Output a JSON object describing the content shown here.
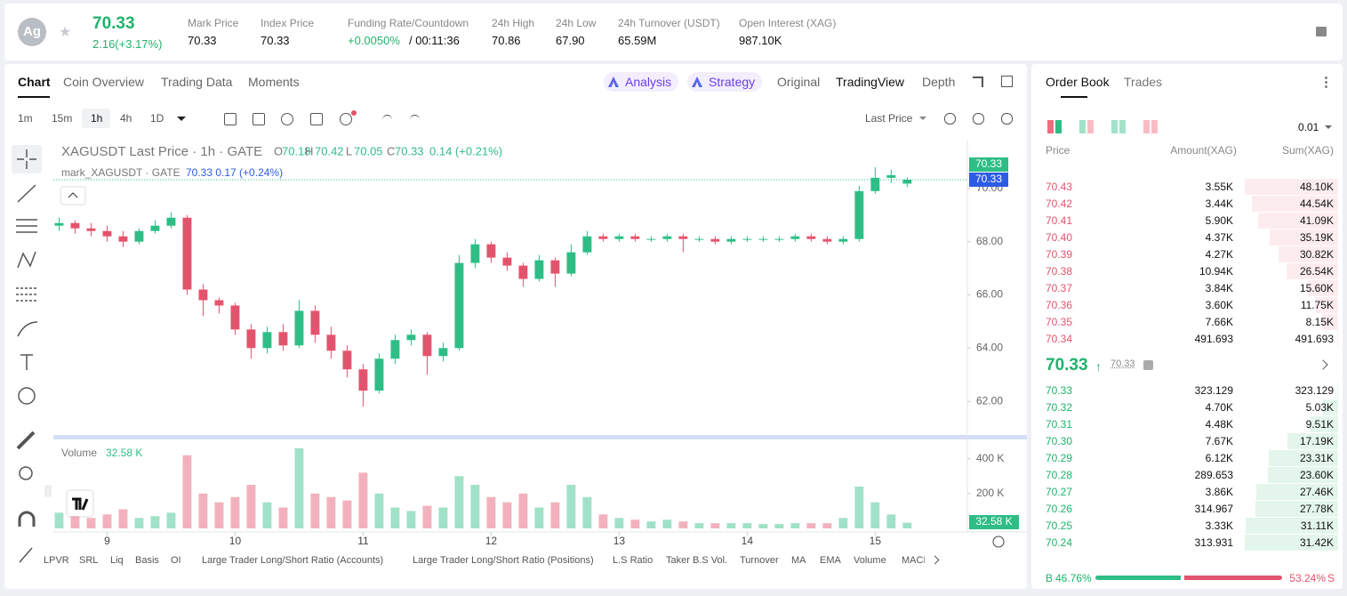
{
  "ticker": {
    "symbol_icon": "Ag",
    "last": "70.33",
    "change": "2.16(+3.17%)",
    "stats": [
      {
        "label": "Mark Price",
        "value": "70.33"
      },
      {
        "label": "Index Price",
        "value": "70.33"
      },
      {
        "label": "Funding Rate/Countdown",
        "value": "+0.0050%",
        "extra": "/ 00:11:36"
      },
      {
        "label": "24h High",
        "value": "70.86"
      },
      {
        "label": "24h Low",
        "value": "67.90"
      },
      {
        "label": "24h Turnover (USDT)",
        "value": "65.59M"
      },
      {
        "label": "Open Interest (XAG)",
        "value": "987.10K"
      }
    ]
  },
  "tabs": {
    "left": [
      "Chart",
      "Coin Overview",
      "Trading Data",
      "Moments"
    ],
    "ai": [
      "Analysis",
      "Strategy"
    ],
    "right": [
      "Original",
      "TradingView",
      "Depth"
    ]
  },
  "toolbar": {
    "intervals": [
      "1m",
      "15m",
      "1h",
      "4h",
      "1D"
    ],
    "price_type": "Last Price"
  },
  "indicators": [
    "LPVR",
    "SRL",
    "Liq",
    "Basis",
    "OI",
    "Large Trader Long/Short Ratio (Accounts)",
    "Large Trader Long/Short Ratio (Positions)",
    "L.S Ratio",
    "Taker B.S Vol.",
    "Turnover",
    "MA",
    "EMA",
    "Volume",
    "MACD"
  ],
  "chart_data": {
    "type": "candlestick",
    "legend": {
      "title": "XAGUSDT Last Price · 1h · GATE",
      "ohlc": [
        {
          "k": "O",
          "v": "70.18"
        },
        {
          "k": "H",
          "v": "70.42"
        },
        {
          "k": "L",
          "v": "70.05"
        },
        {
          "k": "C",
          "v": "70.33"
        }
      ],
      "change": "0.14 (+0.21%)",
      "mark_name": "mark_XAGUSDT · GATE",
      "mark_value": "70.33 0.17 (+0.24%)",
      "volume_name": "Volume",
      "volume_value": "32.58 K"
    },
    "x": [
      8.625,
      8.75,
      8.875,
      9,
      9.125,
      9.25,
      9.375,
      9.5,
      9.625,
      9.75,
      9.875,
      10,
      10.125,
      10.25,
      10.375,
      10.5,
      10.625,
      10.75,
      10.875,
      11,
      11.125,
      11.25,
      11.375,
      11.5,
      11.625,
      11.75,
      11.875,
      12,
      12.125,
      12.25,
      12.375,
      12.5,
      12.625,
      12.75,
      12.875,
      13,
      13.125,
      13.25,
      13.375,
      13.5,
      13.625,
      13.75,
      13.875,
      14,
      14.125,
      14.25,
      14.375,
      14.5,
      14.625,
      14.75,
      14.875,
      15,
      15.125,
      15.25
    ],
    "open": [
      68.6,
      68.7,
      68.5,
      68.4,
      68.2,
      68.0,
      68.4,
      68.6,
      68.9,
      66.2,
      65.8,
      65.6,
      64.7,
      64.0,
      64.6,
      64.1,
      65.4,
      64.5,
      63.9,
      63.2,
      62.4,
      63.6,
      64.3,
      64.5,
      63.7,
      64.0,
      67.2,
      67.9,
      67.4,
      67.1,
      66.6,
      67.3,
      66.8,
      67.6,
      68.2,
      68.1,
      68.2,
      68.1,
      68.1,
      68.2,
      68.1,
      68.1,
      68.0,
      68.1,
      68.1,
      68.1,
      68.1,
      68.2,
      68.1,
      68.0,
      68.1,
      69.9,
      70.4,
      70.18
    ],
    "high": [
      68.9,
      68.8,
      68.7,
      68.6,
      68.4,
      68.5,
      68.8,
      69.1,
      69.0,
      66.4,
      65.9,
      65.7,
      64.9,
      64.8,
      64.9,
      65.8,
      65.6,
      64.8,
      64.1,
      63.4,
      63.8,
      64.5,
      64.7,
      64.6,
      64.2,
      67.5,
      68.1,
      68.0,
      67.6,
      67.2,
      67.5,
      67.4,
      67.9,
      68.4,
      68.3,
      68.3,
      68.3,
      68.2,
      68.3,
      68.3,
      68.2,
      68.2,
      68.2,
      68.2,
      68.2,
      68.2,
      68.3,
      68.3,
      68.2,
      68.2,
      70.1,
      70.8,
      70.7,
      70.42
    ],
    "low": [
      68.4,
      68.3,
      68.2,
      68.0,
      67.8,
      67.9,
      68.3,
      68.5,
      66.0,
      65.2,
      65.3,
      64.5,
      63.6,
      63.8,
      63.9,
      64.0,
      64.2,
      63.6,
      62.9,
      61.8,
      62.3,
      63.4,
      64.1,
      63.0,
      63.5,
      63.9,
      67.0,
      67.2,
      66.9,
      66.3,
      66.5,
      66.3,
      66.7,
      67.5,
      68.0,
      68.0,
      68.0,
      68.0,
      68.0,
      67.6,
      68.0,
      67.9,
      67.9,
      68.0,
      68.0,
      68.0,
      68.0,
      68.0,
      67.9,
      67.9,
      68.0,
      69.8,
      70.2,
      70.05
    ],
    "close": [
      68.7,
      68.5,
      68.4,
      68.2,
      68.0,
      68.4,
      68.6,
      68.9,
      66.2,
      65.8,
      65.6,
      64.7,
      64.0,
      64.6,
      64.1,
      65.4,
      64.5,
      63.9,
      63.2,
      62.4,
      63.6,
      64.3,
      64.5,
      63.7,
      64.0,
      67.2,
      67.9,
      67.4,
      67.1,
      66.6,
      67.3,
      66.8,
      67.6,
      68.2,
      68.1,
      68.2,
      68.1,
      68.1,
      68.2,
      68.1,
      68.1,
      68.0,
      68.1,
      68.1,
      68.1,
      68.1,
      68.2,
      68.1,
      68.0,
      68.1,
      69.9,
      70.4,
      70.5,
      70.33
    ],
    "volume": [
      90000,
      70000,
      60000,
      80000,
      110000,
      60000,
      70000,
      90000,
      420000,
      200000,
      150000,
      180000,
      250000,
      150000,
      120000,
      460000,
      200000,
      180000,
      160000,
      320000,
      200000,
      120000,
      100000,
      130000,
      120000,
      300000,
      250000,
      180000,
      150000,
      200000,
      120000,
      150000,
      250000,
      180000,
      80000,
      60000,
      50000,
      40000,
      50000,
      40000,
      30000,
      30000,
      30000,
      30000,
      25000,
      25000,
      30000,
      30000,
      30000,
      60000,
      240000,
      150000,
      80000,
      32580
    ],
    "up_color": "#2ebd85",
    "down_color": "#e2546d",
    "xlim": [
      8.58,
      15.72
    ],
    "xticks": [
      9,
      10,
      11,
      12,
      13,
      14,
      15
    ],
    "ylim": [
      60.7,
      71.8
    ],
    "yticks": [
      {
        "value": 62,
        "label": "62.00"
      },
      {
        "value": 64,
        "label": "64.00"
      },
      {
        "value": 66,
        "label": "66.00"
      },
      {
        "value": 68,
        "label": "68.00"
      },
      {
        "value": 70,
        "label": "70.00"
      }
    ],
    "vol_ylim": [
      0,
      480000
    ],
    "vol_yticks": [
      {
        "value": 200000,
        "label": "200 K"
      },
      {
        "value": 400000,
        "label": "400 K"
      }
    ],
    "last_price": {
      "value": 70.33,
      "label": "70.33"
    },
    "mark_price": {
      "value": 70.33,
      "label": "70.33"
    },
    "volume_tag": "32.58 K"
  },
  "order_book": {
    "tabs": [
      "Order Book",
      "Trades"
    ],
    "precision": "0.01",
    "headers": [
      "Price",
      "Amount(XAG)",
      "Sum(XAG)"
    ],
    "asks": [
      [
        "70.43",
        "3.55K",
        "48.10K"
      ],
      [
        "70.42",
        "3.44K",
        "44.54K"
      ],
      [
        "70.41",
        "5.90K",
        "41.09K"
      ],
      [
        "70.40",
        "4.37K",
        "35.19K"
      ],
      [
        "70.39",
        "4.27K",
        "30.82K"
      ],
      [
        "70.38",
        "10.94K",
        "26.54K"
      ],
      [
        "70.37",
        "3.84K",
        "15.60K"
      ],
      [
        "70.36",
        "3.60K",
        "11.75K"
      ],
      [
        "70.35",
        "7.66K",
        "8.15K"
      ],
      [
        "70.34",
        "491.693",
        "491.693"
      ]
    ],
    "ask_depth": [
      48100,
      44540,
      41090,
      35190,
      30820,
      26540,
      15600,
      11750,
      8150,
      491.693
    ],
    "mid": "70.33",
    "mid_mark": "70.33",
    "bids": [
      [
        "70.33",
        "323.129",
        "323.129"
      ],
      [
        "70.32",
        "4.70K",
        "5.03K"
      ],
      [
        "70.31",
        "4.48K",
        "9.51K"
      ],
      [
        "70.30",
        "7.67K",
        "17.19K"
      ],
      [
        "70.29",
        "6.12K",
        "23.31K"
      ],
      [
        "70.28",
        "289.653",
        "23.60K"
      ],
      [
        "70.27",
        "3.86K",
        "27.46K"
      ],
      [
        "70.26",
        "314.967",
        "27.78K"
      ],
      [
        "70.25",
        "3.33K",
        "31.11K"
      ],
      [
        "70.24",
        "313.931",
        "31.42K"
      ]
    ],
    "bid_depth": [
      323.129,
      5030,
      9510,
      17190,
      23310,
      23600,
      27460,
      27780,
      31110,
      31420
    ],
    "buy_label": "B",
    "buy_pct": {
      "value": 46.76,
      "label": "46.76%"
    },
    "sell_pct": {
      "value": 53.24,
      "label": "53.24%"
    },
    "sell_label": "S"
  }
}
